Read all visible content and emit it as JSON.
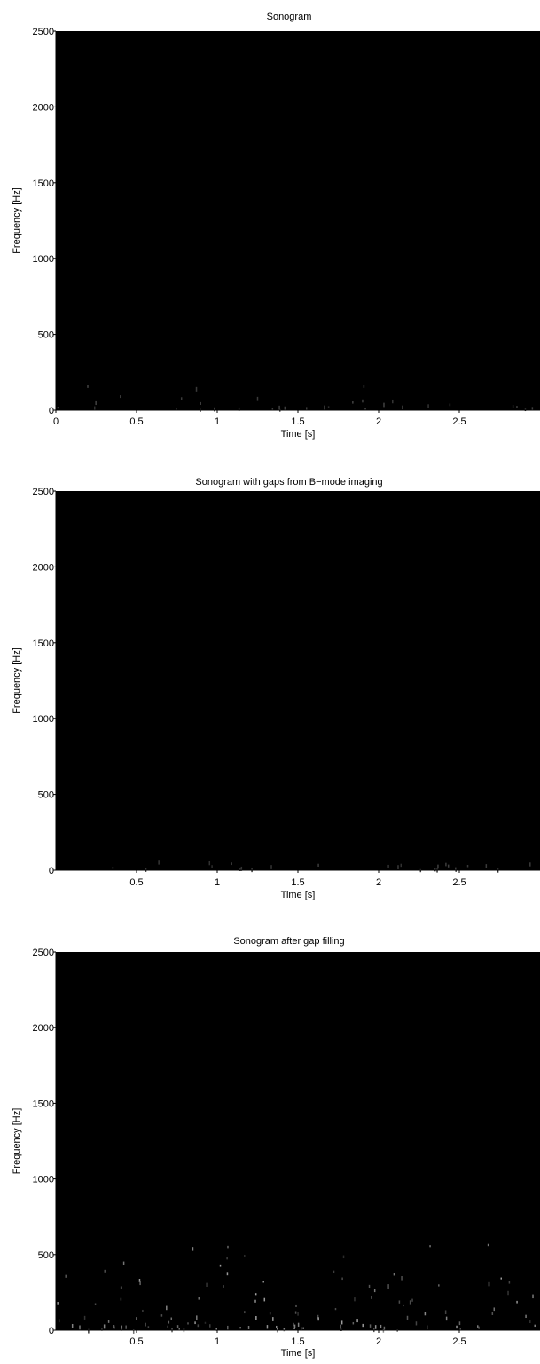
{
  "chart_data": [
    {
      "type": "heatmap",
      "title": "Sonogram",
      "xlabel": "Time [s]",
      "ylabel": "Frequency [Hz]",
      "xlim": [
        0,
        3.0
      ],
      "ylim": [
        0,
        2500
      ],
      "xticks": [
        "0",
        "0.5",
        "1",
        "1.5",
        "2",
        "2.5"
      ],
      "yticks": [
        "0",
        "500",
        "1000",
        "1500",
        "2000",
        "2500"
      ],
      "colormap": "grayscale, black background",
      "background": "#000000",
      "noise_level": 0.15
    },
    {
      "type": "heatmap",
      "title": "Sonogram with gaps from B−mode imaging",
      "xlabel": "Time [s]",
      "ylabel": "Frequency [Hz]",
      "xlim": [
        0,
        3.0
      ],
      "ylim": [
        0,
        2500
      ],
      "xticks": [
        "0.5",
        "1",
        "1.5",
        "2",
        "2.5"
      ],
      "yticks": [
        "0",
        "500",
        "1000",
        "1500",
        "2000",
        "2500"
      ],
      "colormap": "grayscale, black background",
      "background": "#000000",
      "noise_level": 0.12
    },
    {
      "type": "heatmap",
      "title": "Sonogram after gap filling",
      "xlabel": "Time [s]",
      "ylabel": "Frequency [Hz]",
      "xlim": [
        0,
        3.0
      ],
      "ylim": [
        0,
        2500
      ],
      "xticks": [
        "0.5",
        "1",
        "1.5",
        "2",
        "2.5"
      ],
      "yticks": [
        "0",
        "500",
        "1000",
        "1500",
        "2000",
        "2500"
      ],
      "colormap": "grayscale, black background",
      "background": "#000000",
      "noise_level": 0.6
    }
  ]
}
